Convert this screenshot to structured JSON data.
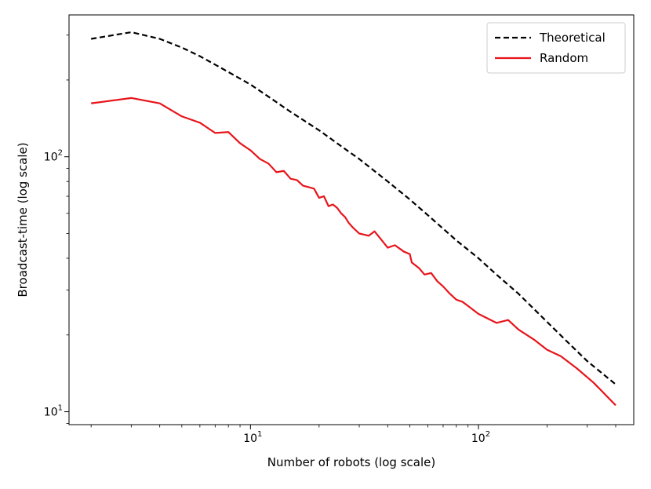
{
  "chart_data": {
    "type": "line",
    "title": "",
    "xlabel": "Number of robots (log scale)",
    "ylabel": "Broadcast-time (log scale)",
    "xscale": "log",
    "yscale": "log",
    "xlim": [
      1.6,
      480
    ],
    "ylim": [
      8.9,
      360
    ],
    "grid": false,
    "legend_position": "top-right",
    "x_ticks": [
      {
        "value": 10,
        "base": "10",
        "exp": "1"
      },
      {
        "value": 100,
        "base": "10",
        "exp": "2"
      }
    ],
    "y_ticks": [
      {
        "value": 10,
        "base": "10",
        "exp": "1"
      },
      {
        "value": 100,
        "base": "10",
        "exp": "2"
      }
    ],
    "series": [
      {
        "name": "Theoretical",
        "color": "#000000",
        "style": "dashed",
        "x": [
          2,
          3,
          4,
          5,
          6,
          8,
          10,
          12,
          15,
          20,
          25,
          30,
          40,
          50,
          60,
          80,
          100,
          120,
          150,
          200,
          250,
          300,
          400
        ],
        "y": [
          290,
          308,
          290,
          268,
          248,
          215,
          192,
          172,
          150,
          127,
          110,
          98,
          80,
          68,
          59,
          47,
          40,
          34.5,
          29,
          22.5,
          18.5,
          15.8,
          12.8
        ]
      },
      {
        "name": "Random",
        "color": "#e8141b",
        "style": "solid",
        "x": [
          2,
          3,
          4,
          5,
          6,
          7,
          8,
          9,
          10,
          11,
          12,
          13,
          14,
          15,
          16,
          17,
          18,
          19,
          20,
          21,
          22,
          23,
          24,
          25,
          26,
          27,
          28,
          30,
          33,
          35,
          37,
          40,
          43,
          47,
          50,
          51,
          55,
          58,
          62,
          66,
          70,
          75,
          80,
          85,
          90,
          100,
          110,
          120,
          135,
          150,
          175,
          200,
          230,
          270,
          320,
          400
        ],
        "y": [
          162,
          170,
          162,
          144,
          136,
          124,
          125,
          113,
          106,
          98,
          94,
          87,
          88,
          82,
          81,
          77,
          76,
          75,
          69,
          70,
          64,
          65,
          63,
          60,
          58,
          55,
          53,
          50,
          49,
          51,
          48,
          44,
          45,
          42.5,
          41.5,
          38.5,
          36.5,
          34.5,
          35,
          32.5,
          31,
          29,
          27.5,
          27,
          26,
          24.2,
          23.2,
          22.3,
          22.9,
          21,
          19.2,
          17.5,
          16.5,
          14.8,
          13,
          10.6
        ]
      }
    ]
  }
}
